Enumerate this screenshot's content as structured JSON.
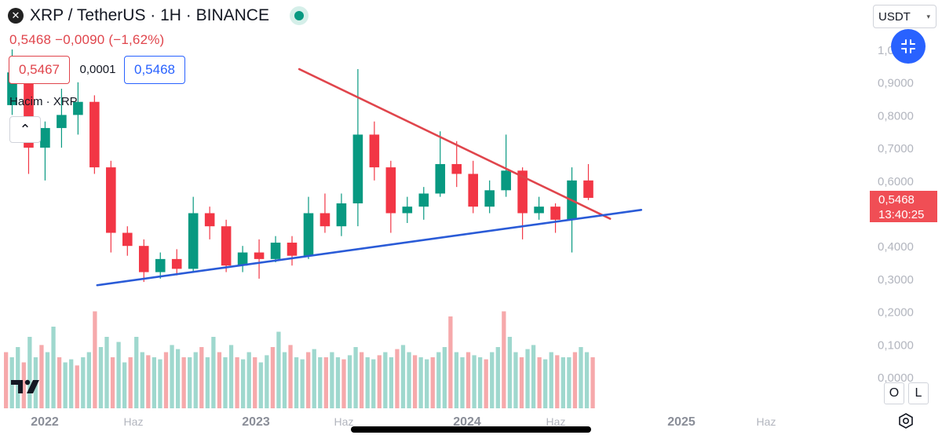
{
  "header": {
    "title": "XRP / TetherUS · 1H · BINANCE",
    "logo_glyph": "✕",
    "quote": "0,5468 −0,0090 (−1,62%)",
    "bid": "0,5467",
    "spread": "0,0001",
    "ask": "0,5468",
    "volume_label": "Hacim · XRP",
    "collapse_glyph": "⌃"
  },
  "currency": {
    "label": "USDT",
    "arrow": "▾"
  },
  "last_price": {
    "value": "0,5468",
    "countdown": "13:40:25"
  },
  "buttons": {
    "o_label": "O",
    "l_label": "L"
  },
  "colors": {
    "up": "#089981",
    "down": "#f23645",
    "vol_up": "#9fd8ce",
    "vol_down": "#f6a9ab",
    "resistance": "#e0454c",
    "support": "#2a5bd7",
    "axis_text": "#b2b5be"
  },
  "chart_data": {
    "type": "candlestick",
    "price_range": [
      0.18,
      1.05
    ],
    "y_tick_labels": [
      "1,0000",
      "0,9000",
      "0,8000",
      "0,7000",
      "0,6000",
      "0,5000",
      "0,4000",
      "0,3000",
      "0,2000",
      "0,1000",
      "0,0000"
    ],
    "x_tick_labels": [
      "2022",
      "Haz",
      "2023",
      "Haz",
      "2024",
      "Haz",
      "2025",
      "Haz"
    ],
    "x_range": [
      "2021-12",
      "2025-10"
    ],
    "candles": [
      {
        "t": "2021-12",
        "o": 0.83,
        "h": 1.0,
        "l": 0.8,
        "c": 0.93
      },
      {
        "t": "2022-01",
        "o": 0.93,
        "h": 0.95,
        "l": 0.62,
        "c": 0.7
      },
      {
        "t": "2022-02",
        "o": 0.7,
        "h": 0.78,
        "l": 0.6,
        "c": 0.76
      },
      {
        "t": "2022-03",
        "o": 0.76,
        "h": 0.88,
        "l": 0.7,
        "c": 0.8
      },
      {
        "t": "2022-03b",
        "o": 0.8,
        "h": 0.9,
        "l": 0.74,
        "c": 0.84
      },
      {
        "t": "2022-04",
        "o": 0.84,
        "h": 0.86,
        "l": 0.62,
        "c": 0.64
      },
      {
        "t": "2022-05",
        "o": 0.64,
        "h": 0.66,
        "l": 0.38,
        "c": 0.44
      },
      {
        "t": "2022-05b",
        "o": 0.44,
        "h": 0.46,
        "l": 0.37,
        "c": 0.4
      },
      {
        "t": "2022-06",
        "o": 0.4,
        "h": 0.42,
        "l": 0.29,
        "c": 0.32
      },
      {
        "t": "2022-07",
        "o": 0.32,
        "h": 0.38,
        "l": 0.3,
        "c": 0.36
      },
      {
        "t": "2022-08",
        "o": 0.36,
        "h": 0.39,
        "l": 0.31,
        "c": 0.33
      },
      {
        "t": "2022-09",
        "o": 0.33,
        "h": 0.55,
        "l": 0.32,
        "c": 0.5
      },
      {
        "t": "2022-10",
        "o": 0.5,
        "h": 0.52,
        "l": 0.42,
        "c": 0.46
      },
      {
        "t": "2022-11",
        "o": 0.46,
        "h": 0.48,
        "l": 0.32,
        "c": 0.34
      },
      {
        "t": "2022-12",
        "o": 0.34,
        "h": 0.4,
        "l": 0.32,
        "c": 0.38
      },
      {
        "t": "2023-01",
        "o": 0.38,
        "h": 0.42,
        "l": 0.3,
        "c": 0.36
      },
      {
        "t": "2023-02",
        "o": 0.36,
        "h": 0.43,
        "l": 0.35,
        "c": 0.41
      },
      {
        "t": "2023-03",
        "o": 0.41,
        "h": 0.43,
        "l": 0.34,
        "c": 0.37
      },
      {
        "t": "2023-04",
        "o": 0.37,
        "h": 0.55,
        "l": 0.36,
        "c": 0.5
      },
      {
        "t": "2023-05",
        "o": 0.5,
        "h": 0.56,
        "l": 0.44,
        "c": 0.46
      },
      {
        "t": "2023-06",
        "o": 0.46,
        "h": 0.56,
        "l": 0.43,
        "c": 0.53
      },
      {
        "t": "2023-07",
        "o": 0.53,
        "h": 0.94,
        "l": 0.46,
        "c": 0.74
      },
      {
        "t": "2023-07b",
        "o": 0.74,
        "h": 0.78,
        "l": 0.6,
        "c": 0.64
      },
      {
        "t": "2023-08",
        "o": 0.64,
        "h": 0.66,
        "l": 0.44,
        "c": 0.5
      },
      {
        "t": "2023-09",
        "o": 0.5,
        "h": 0.55,
        "l": 0.47,
        "c": 0.52
      },
      {
        "t": "2023-10",
        "o": 0.52,
        "h": 0.58,
        "l": 0.48,
        "c": 0.56
      },
      {
        "t": "2023-11",
        "o": 0.56,
        "h": 0.75,
        "l": 0.55,
        "c": 0.65
      },
      {
        "t": "2023-12",
        "o": 0.65,
        "h": 0.72,
        "l": 0.58,
        "c": 0.62
      },
      {
        "t": "2024-01",
        "o": 0.62,
        "h": 0.66,
        "l": 0.5,
        "c": 0.52
      },
      {
        "t": "2024-02",
        "o": 0.52,
        "h": 0.6,
        "l": 0.5,
        "c": 0.57
      },
      {
        "t": "2024-03",
        "o": 0.57,
        "h": 0.74,
        "l": 0.55,
        "c": 0.63
      },
      {
        "t": "2024-04",
        "o": 0.63,
        "h": 0.64,
        "l": 0.42,
        "c": 0.5
      },
      {
        "t": "2024-05",
        "o": 0.5,
        "h": 0.55,
        "l": 0.48,
        "c": 0.52
      },
      {
        "t": "2024-06",
        "o": 0.52,
        "h": 0.53,
        "l": 0.44,
        "c": 0.48
      },
      {
        "t": "2024-07",
        "o": 0.48,
        "h": 0.64,
        "l": 0.38,
        "c": 0.6
      },
      {
        "t": "2024-07b",
        "o": 0.6,
        "h": 0.65,
        "l": 0.54,
        "c": 0.5468
      }
    ],
    "volume": [
      0.55,
      0.5,
      0.6,
      0.45,
      0.7,
      0.5,
      0.62,
      0.55,
      0.8,
      0.5,
      0.45,
      0.48,
      0.42,
      0.5,
      0.55,
      0.95,
      0.6,
      0.7,
      0.5,
      0.65,
      0.45,
      0.5,
      0.7,
      0.55,
      0.52,
      0.5,
      0.48,
      0.55,
      0.62,
      0.58,
      0.5,
      0.5,
      0.55,
      0.6,
      0.5,
      0.7,
      0.55,
      0.5,
      0.62,
      0.5,
      0.48,
      0.55,
      0.5,
      0.45,
      0.52,
      0.6,
      0.75,
      0.55,
      0.62,
      0.5,
      0.48,
      0.55,
      0.58,
      0.5,
      0.5,
      0.55,
      0.5,
      0.48,
      0.52,
      0.6,
      0.55,
      0.5,
      0.48,
      0.52,
      0.55,
      0.5,
      0.58,
      0.62,
      0.55,
      0.52,
      0.5,
      0.48,
      0.5,
      0.55,
      0.6,
      0.9,
      0.55,
      0.5,
      0.55,
      0.52,
      0.5,
      0.48,
      0.55,
      0.6,
      0.95,
      0.7,
      0.55,
      0.5,
      0.58,
      0.62,
      0.5,
      0.48,
      0.55,
      0.52,
      0.5,
      0.5,
      0.55,
      0.6,
      0.55,
      0.5
    ],
    "trendlines": [
      {
        "kind": "resistance",
        "from": {
          "t": "2023-07",
          "price": 0.94
        },
        "to": {
          "t": "2025-03",
          "price": 0.483
        }
      },
      {
        "kind": "support",
        "from": {
          "t": "2022-06",
          "price": 0.28
        },
        "to": {
          "t": "2025-05",
          "price": 0.51
        }
      }
    ],
    "grid": false,
    "last_price": 0.5468
  }
}
